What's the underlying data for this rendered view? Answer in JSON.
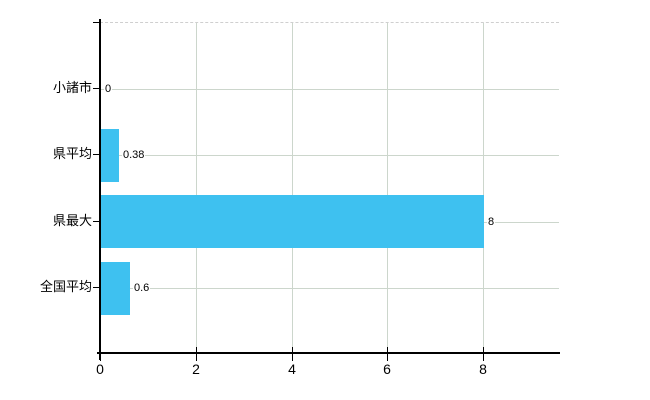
{
  "chart_data": {
    "type": "bar",
    "orientation": "horizontal",
    "title": "",
    "xlabel": "",
    "ylabel": "",
    "categories": [
      "小諸市",
      "県平均",
      "県最大",
      "全国平均"
    ],
    "values": [
      0,
      0.38,
      8,
      0.6
    ],
    "value_labels": [
      "0",
      "0.38",
      "8",
      "0.6"
    ],
    "x_ticks": [
      0,
      2,
      4,
      6,
      8
    ],
    "x_tick_labels": [
      "0",
      "2",
      "4",
      "6",
      "8"
    ],
    "xlim": [
      0,
      9.6
    ],
    "grid": true,
    "legend": false,
    "colors": {
      "bar": "#3ec1f0",
      "gridline": "#ccd6cc",
      "top_border": "#cfcfcf",
      "axis": "#000000",
      "text": "#000000",
      "background": "#ffffff"
    }
  }
}
